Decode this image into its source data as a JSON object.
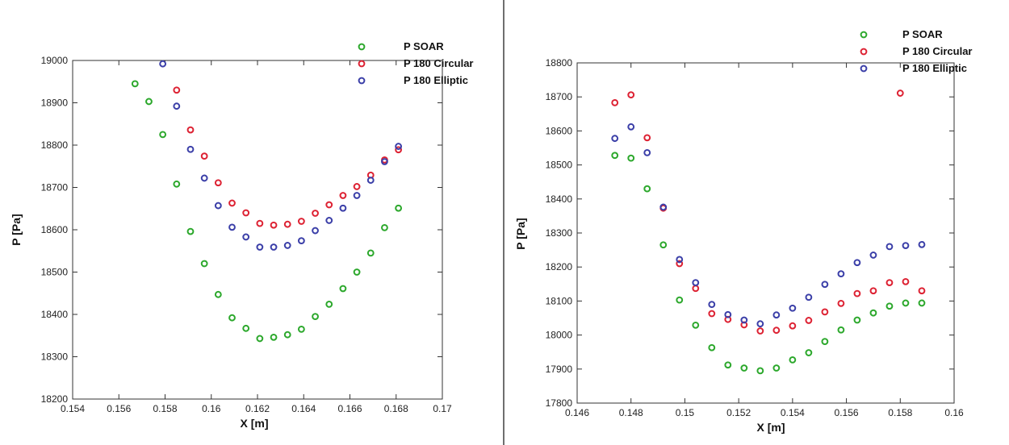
{
  "chart_data": [
    {
      "type": "scatter",
      "xlabel": "X [m]",
      "ylabel": "P [Pa]",
      "xlim": [
        0.154,
        0.17
      ],
      "ylim": [
        18200,
        19000
      ],
      "xticks": [
        0.154,
        0.156,
        0.158,
        0.16,
        0.162,
        0.164,
        0.166,
        0.168,
        0.17
      ],
      "xtick_labels": [
        "0.154",
        "0.156",
        "0.158",
        "0.16",
        "0.162",
        "0.164",
        "0.166",
        "0.168",
        "0.17"
      ],
      "yticks": [
        18200,
        18300,
        18400,
        18500,
        18600,
        18700,
        18800,
        18900,
        19000
      ],
      "ytick_labels": [
        "18200",
        "18300",
        "18400",
        "18500",
        "18600",
        "18700",
        "18800",
        "18900",
        "19000"
      ],
      "legend_position": "top-right",
      "series": [
        {
          "name": "P SOAR",
          "color": "#2ca82c",
          "points": [
            [
              0.1567,
              18945
            ],
            [
              0.1573,
              18903
            ],
            [
              0.1579,
              18825
            ],
            [
              0.1585,
              18708
            ],
            [
              0.1591,
              18596
            ],
            [
              0.1597,
              18520
            ],
            [
              0.1603,
              18447
            ],
            [
              0.1609,
              18392
            ],
            [
              0.1615,
              18367
            ],
            [
              0.1621,
              18343
            ],
            [
              0.1627,
              18346
            ],
            [
              0.1633,
              18352
            ],
            [
              0.1639,
              18365
            ],
            [
              0.1645,
              18395
            ],
            [
              0.1651,
              18424
            ],
            [
              0.1657,
              18461
            ],
            [
              0.1663,
              18500
            ],
            [
              0.1669,
              18545
            ],
            [
              0.1675,
              18605
            ],
            [
              0.1681,
              18651
            ]
          ]
        },
        {
          "name": "P 180 Circular",
          "color": "#dd2233",
          "points": [
            [
              0.1585,
              18930
            ],
            [
              0.1591,
              18836
            ],
            [
              0.1597,
              18774
            ],
            [
              0.1603,
              18711
            ],
            [
              0.1609,
              18663
            ],
            [
              0.1615,
              18640
            ],
            [
              0.1621,
              18615
            ],
            [
              0.1627,
              18611
            ],
            [
              0.1633,
              18613
            ],
            [
              0.1639,
              18620
            ],
            [
              0.1645,
              18639
            ],
            [
              0.1651,
              18659
            ],
            [
              0.1657,
              18681
            ],
            [
              0.1663,
              18702
            ],
            [
              0.1669,
              18729
            ],
            [
              0.1675,
              18765
            ],
            [
              0.1681,
              18789
            ]
          ]
        },
        {
          "name": "P 180 Elliptic",
          "color": "#3b3fa8",
          "points": [
            [
              0.1579,
              18992
            ],
            [
              0.1585,
              18892
            ],
            [
              0.1591,
              18790
            ],
            [
              0.1597,
              18722
            ],
            [
              0.1603,
              18657
            ],
            [
              0.1609,
              18606
            ],
            [
              0.1615,
              18583
            ],
            [
              0.1621,
              18559
            ],
            [
              0.1627,
              18559
            ],
            [
              0.1633,
              18563
            ],
            [
              0.1639,
              18574
            ],
            [
              0.1645,
              18598
            ],
            [
              0.1651,
              18622
            ],
            [
              0.1657,
              18651
            ],
            [
              0.1663,
              18681
            ],
            [
              0.1669,
              18717
            ],
            [
              0.1675,
              18761
            ],
            [
              0.1681,
              18797
            ]
          ]
        }
      ]
    },
    {
      "type": "scatter",
      "xlabel": "X [m]",
      "ylabel": "P [Pa]",
      "xlim": [
        0.146,
        0.16
      ],
      "ylim": [
        17800,
        18800
      ],
      "xticks": [
        0.146,
        0.148,
        0.15,
        0.152,
        0.154,
        0.156,
        0.158,
        0.16
      ],
      "xtick_labels": [
        "0.146",
        "0.148",
        "0.15",
        "0.152",
        "0.154",
        "0.156",
        "0.158",
        "0.16"
      ],
      "yticks": [
        17800,
        17900,
        18000,
        18100,
        18200,
        18300,
        18400,
        18500,
        18600,
        18700,
        18800
      ],
      "ytick_labels": [
        "17800",
        "17900",
        "18000",
        "18100",
        "18200",
        "18300",
        "18400",
        "18500",
        "18600",
        "18700",
        "18800"
      ],
      "legend_position": "top-right",
      "series": [
        {
          "name": "P SOAR",
          "color": "#2ca82c",
          "points": [
            [
              0.1474,
              18528
            ],
            [
              0.148,
              18520
            ],
            [
              0.1486,
              18430
            ],
            [
              0.1492,
              18265
            ],
            [
              0.1498,
              18103
            ],
            [
              0.1504,
              18029
            ],
            [
              0.151,
              17963
            ],
            [
              0.1516,
              17912
            ],
            [
              0.1522,
              17903
            ],
            [
              0.1528,
              17895
            ],
            [
              0.1534,
              17903
            ],
            [
              0.154,
              17927
            ],
            [
              0.1546,
              17948
            ],
            [
              0.1552,
              17981
            ],
            [
              0.1558,
              18015
            ],
            [
              0.1564,
              18044
            ],
            [
              0.157,
              18065
            ],
            [
              0.1576,
              18085
            ],
            [
              0.1582,
              18094
            ],
            [
              0.1588,
              18094
            ]
          ]
        },
        {
          "name": "P 180 Circular",
          "color": "#dd2233",
          "points": [
            [
              0.1474,
              18683
            ],
            [
              0.148,
              18706
            ],
            [
              0.1486,
              18580
            ],
            [
              0.1492,
              18373
            ],
            [
              0.1498,
              18210
            ],
            [
              0.1504,
              18137
            ],
            [
              0.151,
              18063
            ],
            [
              0.1516,
              18046
            ],
            [
              0.1522,
              18030
            ],
            [
              0.1528,
              18012
            ],
            [
              0.1534,
              18014
            ],
            [
              0.154,
              18027
            ],
            [
              0.1546,
              18043
            ],
            [
              0.1552,
              18068
            ],
            [
              0.1558,
              18093
            ],
            [
              0.1564,
              18122
            ],
            [
              0.157,
              18130
            ],
            [
              0.1576,
              18154
            ],
            [
              0.1582,
              18157
            ],
            [
              0.1588,
              18130
            ],
            [
              0.158,
              18711
            ]
          ]
        },
        {
          "name": "P 180 Elliptic",
          "color": "#3b3fa8",
          "points": [
            [
              0.1474,
              18578
            ],
            [
              0.148,
              18612
            ],
            [
              0.1486,
              18536
            ],
            [
              0.1492,
              18376
            ],
            [
              0.1498,
              18222
            ],
            [
              0.1504,
              18154
            ],
            [
              0.151,
              18090
            ],
            [
              0.1516,
              18060
            ],
            [
              0.1522,
              18044
            ],
            [
              0.1528,
              18033
            ],
            [
              0.1534,
              18059
            ],
            [
              0.154,
              18079
            ],
            [
              0.1546,
              18111
            ],
            [
              0.1552,
              18149
            ],
            [
              0.1558,
              18180
            ],
            [
              0.1564,
              18213
            ],
            [
              0.157,
              18235
            ],
            [
              0.1576,
              18260
            ],
            [
              0.1582,
              18263
            ],
            [
              0.1588,
              18266
            ]
          ]
        }
      ]
    }
  ]
}
